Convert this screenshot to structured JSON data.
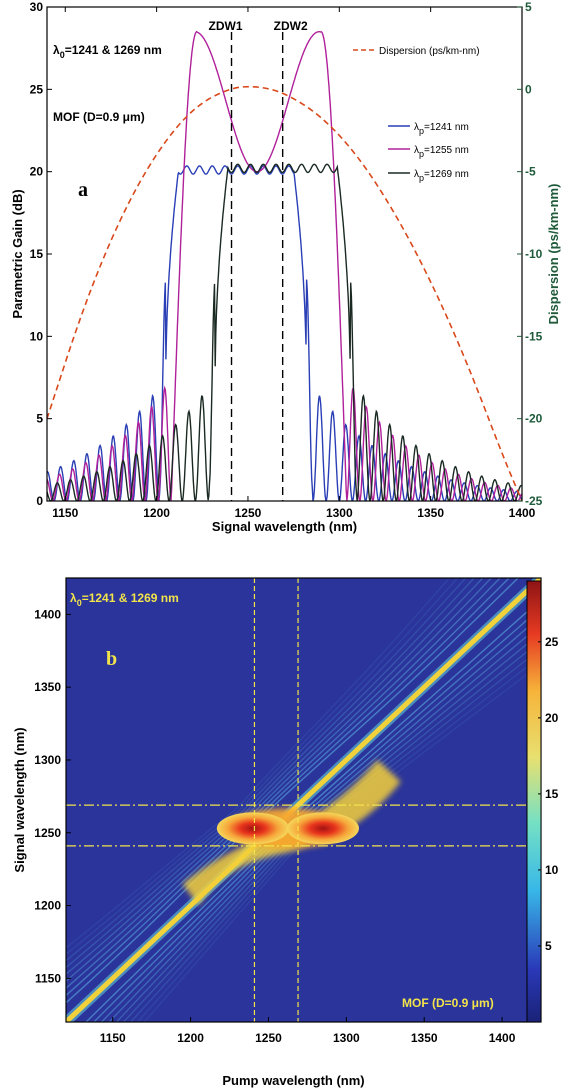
{
  "chart_data": [
    {
      "type": "line",
      "panel_label": "a",
      "xlabel": "Signal wavelength (nm)",
      "ylabel": "Parametric Gain (dB)",
      "y2label": "Dispersion (ps/km-nm)",
      "xlim": [
        1140,
        1400
      ],
      "ylim": [
        0,
        30
      ],
      "y2lim": [
        -25,
        5
      ],
      "x_ticks": [
        1150,
        1200,
        1250,
        1300,
        1350,
        1400
      ],
      "y_ticks": [
        0,
        5,
        10,
        15,
        20,
        25,
        30
      ],
      "y2_ticks": [
        -25,
        -20,
        -15,
        -10,
        -5,
        0,
        5
      ],
      "annotations": {
        "lambda0": "λ0=1241 & 1269 nm",
        "mof": "MOF (D=0.9 μm)",
        "zdw1": "ZDW1",
        "zdw2": "ZDW2"
      },
      "vlines": [
        1241,
        1269
      ],
      "series": [
        {
          "name": "λp=1241 nm",
          "color": "#2a3fb5",
          "pump": 1241,
          "plateau_gain": 20.1,
          "side_lobe_peak": 7.5,
          "inner_edges": [
            1205,
            1282
          ]
        },
        {
          "name": "λp=1255 nm",
          "color": "#b0209a",
          "pump": 1255,
          "peaks": [
            [
              1222,
              28.5
            ],
            [
              1290,
              28.5
            ]
          ],
          "center_dip": [
            1255,
            20.0
          ],
          "side_lobe_peak": 7.5
        },
        {
          "name": "λp=1269 nm",
          "color": "#1a2a22",
          "pump": 1269,
          "plateau_gain": 20.2,
          "side_lobe_peak": 7.5,
          "inner_edges": [
            1232,
            1306
          ]
        },
        {
          "name": "Dispersion (ps/km-nm)",
          "color": "#d9481b",
          "axis": "right",
          "dashed": true,
          "x": [
            1140,
            1160,
            1180,
            1200,
            1220,
            1240,
            1255,
            1270,
            1290,
            1310,
            1330,
            1350,
            1370,
            1390,
            1400
          ],
          "y": [
            -20.0,
            -13.2,
            -7.8,
            -3.8,
            -1.1,
            0.1,
            0.2,
            -0.2,
            -1.6,
            -4.0,
            -7.4,
            -11.6,
            -16.6,
            -22.4,
            -25.0
          ]
        }
      ],
      "legend_position": "top-right"
    },
    {
      "type": "heatmap",
      "panel_label": "b",
      "xlabel": "Pump wavelength (nm)",
      "ylabel": "Signal wavelength (nm)",
      "xlim": [
        1120,
        1425
      ],
      "ylim": [
        1120,
        1425
      ],
      "x_ticks": [
        1150,
        1200,
        1250,
        1300,
        1350,
        1400
      ],
      "y_ticks": [
        1150,
        1200,
        1250,
        1300,
        1350,
        1400
      ],
      "colorbar_ticks": [
        5,
        10,
        15,
        20,
        25
      ],
      "colorbar_range": [
        0,
        29
      ],
      "colorscale": "jet",
      "annotations": {
        "lambda0": "λ0=1241 & 1269 nm",
        "mof": "MOF (D=0.9 μm)"
      },
      "vlines": [
        1241,
        1269
      ],
      "hlines": [
        1241,
        1269
      ],
      "features": {
        "diagonal_gain": 20,
        "hot_spots": [
          [
            1240,
            1253,
            28
          ],
          [
            1285,
            1253,
            28
          ]
        ],
        "central_gain": 20
      }
    }
  ]
}
